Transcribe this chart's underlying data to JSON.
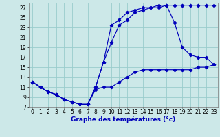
{
  "title": "Graphe des températures (°c)",
  "bg_color": "#cce8e8",
  "grid_color": "#99cccc",
  "line_color": "#0000bb",
  "xlim": [
    -0.5,
    23.5
  ],
  "ylim": [
    7,
    28
  ],
  "xticks": [
    0,
    1,
    2,
    3,
    4,
    5,
    6,
    7,
    8,
    9,
    10,
    11,
    12,
    13,
    14,
    15,
    16,
    17,
    18,
    19,
    20,
    21,
    22,
    23
  ],
  "yticks": [
    7,
    9,
    11,
    13,
    15,
    17,
    19,
    21,
    23,
    25,
    27
  ],
  "line1_x": [
    0,
    1,
    2,
    3,
    4,
    5,
    6,
    7,
    8,
    9,
    10,
    11,
    12,
    13,
    14,
    15,
    16,
    17,
    18,
    19,
    20,
    21,
    22,
    23
  ],
  "line1_y": [
    12,
    11,
    10,
    9.5,
    8.5,
    8,
    7.5,
    7.5,
    10.5,
    11,
    11,
    12,
    13,
    14,
    14.5,
    14.5,
    14.5,
    14.5,
    14.5,
    14.5,
    14.5,
    15,
    15,
    15.5
  ],
  "line2_x": [
    0,
    1,
    2,
    3,
    4,
    5,
    6,
    7,
    8,
    9,
    10,
    11,
    12,
    13,
    14,
    15,
    16,
    17,
    18,
    19,
    20,
    21,
    22,
    23
  ],
  "line2_y": [
    12,
    11,
    10,
    9.5,
    8.5,
    8,
    7.5,
    7.5,
    11,
    16,
    23.5,
    24.5,
    26,
    26.5,
    27,
    27,
    27.5,
    27.5,
    27.5,
    27.5,
    27.5,
    27.5,
    27.5,
    27.5
  ],
  "line3_x": [
    0,
    1,
    2,
    3,
    4,
    5,
    6,
    7,
    8,
    9,
    10,
    11,
    12,
    13,
    14,
    15,
    16,
    17,
    18,
    19,
    20,
    21,
    22,
    23
  ],
  "line3_y": [
    12,
    11,
    10,
    9.5,
    8.5,
    8,
    7.5,
    7.5,
    11,
    16,
    20,
    23.5,
    24.5,
    26,
    26.5,
    27,
    27,
    27.5,
    24,
    19,
    17.5,
    17,
    17,
    15.5
  ],
  "label_fontsize": 5.5,
  "xlabel_fontsize": 6.5
}
